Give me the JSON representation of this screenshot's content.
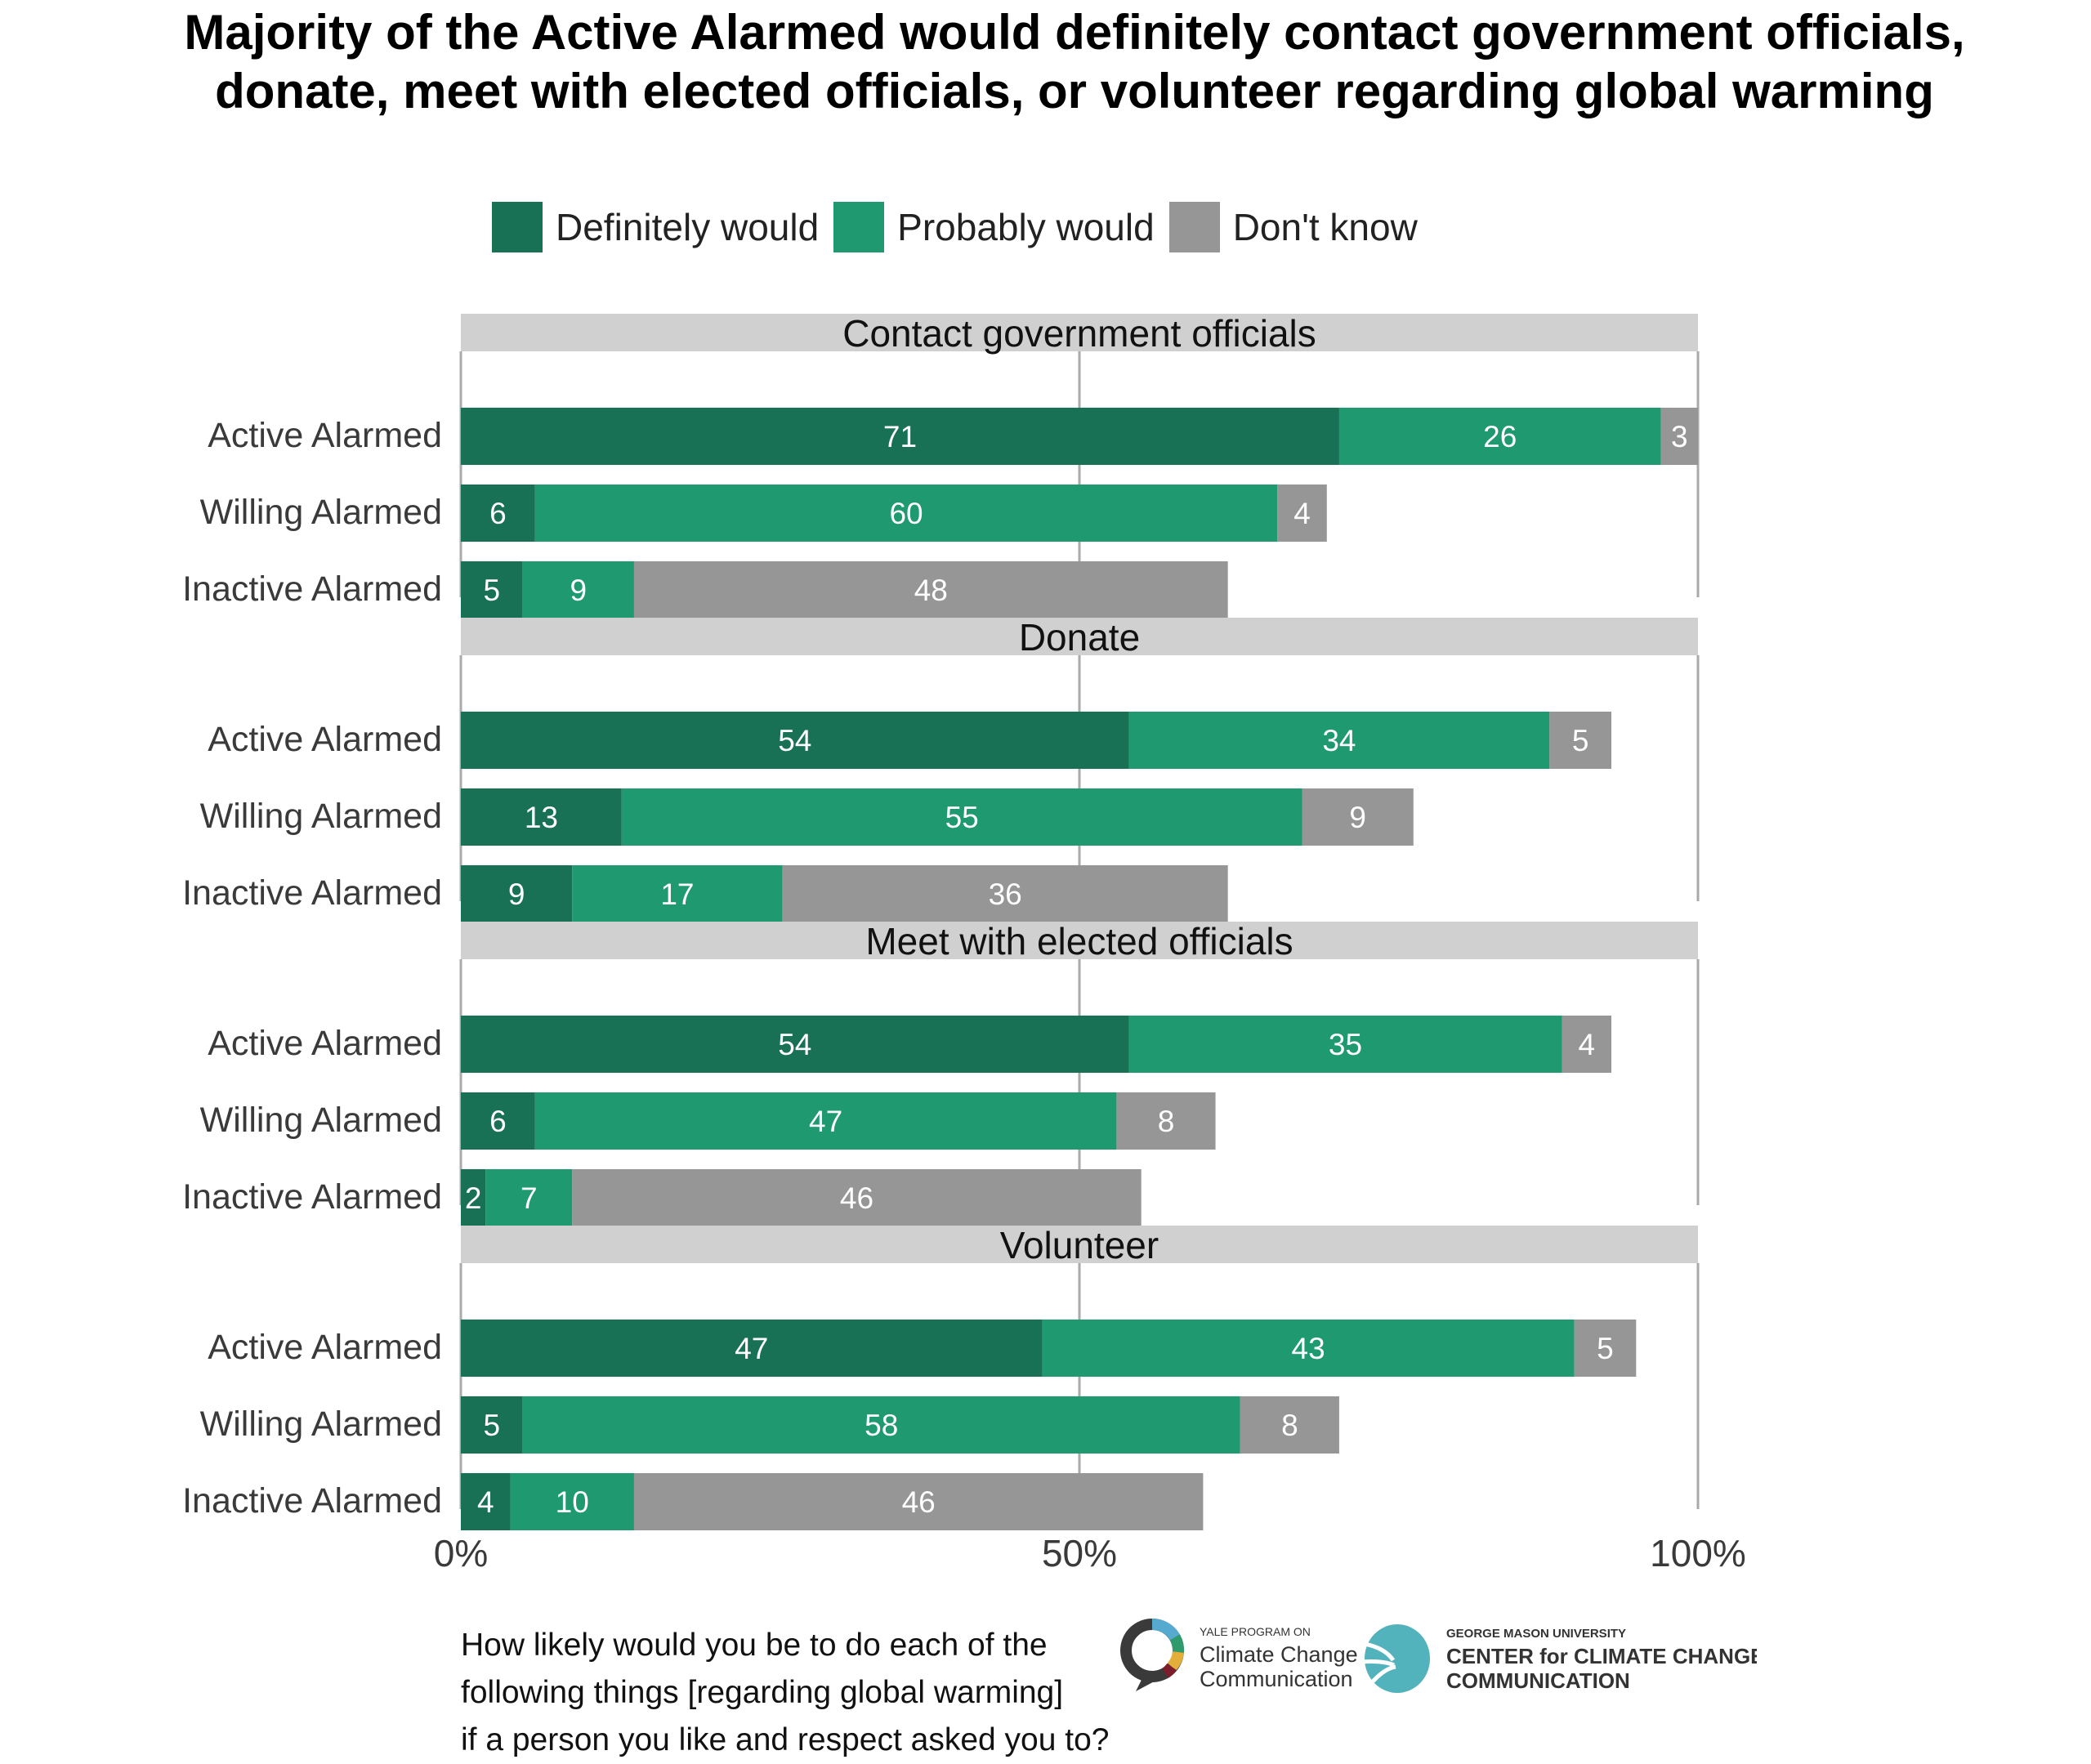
{
  "title_line1": "Majority of the Active Alarmed would definitely contact government officials,",
  "title_line2": "donate, meet with elected officials, or volunteer regarding global warming",
  "legend": [
    {
      "label": "Definitely would",
      "color": "#187155"
    },
    {
      "label": "Probably would",
      "color": "#1f9a70"
    },
    {
      "label": "Don't know",
      "color": "#969696"
    }
  ],
  "caption_lines": [
    "How likely would you be to do each of the",
    "following things [regarding global warming]",
    "if a person you like and respect asked you to?"
  ],
  "logos": {
    "yale_small": "YALE PROGRAM ON",
    "yale_line1": "Climate Change",
    "yale_line2": "Communication",
    "gmu_small": "GEORGE MASON UNIVERSITY",
    "gmu_line1": "CENTER for CLIMATE CHANGE",
    "gmu_line2": "COMMUNICATION"
  },
  "chart_data": {
    "type": "bar",
    "orientation": "horizontal-stacked",
    "xlim": [
      0,
      100
    ],
    "x_ticks": [
      0,
      50,
      100
    ],
    "x_tick_labels": [
      "0%",
      "50%",
      "100%"
    ],
    "categories": [
      "Active Alarmed",
      "Willing Alarmed",
      "Inactive Alarmed"
    ],
    "series_names": [
      "Definitely would",
      "Probably would",
      "Don't know"
    ],
    "legend_position": "top",
    "panels": [
      {
        "title": "Contact government officials",
        "values": [
          [
            71,
            26,
            3
          ],
          [
            6,
            60,
            4
          ],
          [
            5,
            9,
            48
          ]
        ]
      },
      {
        "title": "Donate",
        "values": [
          [
            54,
            34,
            5
          ],
          [
            13,
            55,
            9
          ],
          [
            9,
            17,
            36
          ]
        ]
      },
      {
        "title": "Meet with elected officials",
        "values": [
          [
            54,
            35,
            4
          ],
          [
            6,
            47,
            8
          ],
          [
            2,
            7,
            46
          ]
        ]
      },
      {
        "title": "Volunteer",
        "values": [
          [
            47,
            43,
            5
          ],
          [
            5,
            58,
            8
          ],
          [
            4,
            10,
            46
          ]
        ]
      }
    ]
  }
}
